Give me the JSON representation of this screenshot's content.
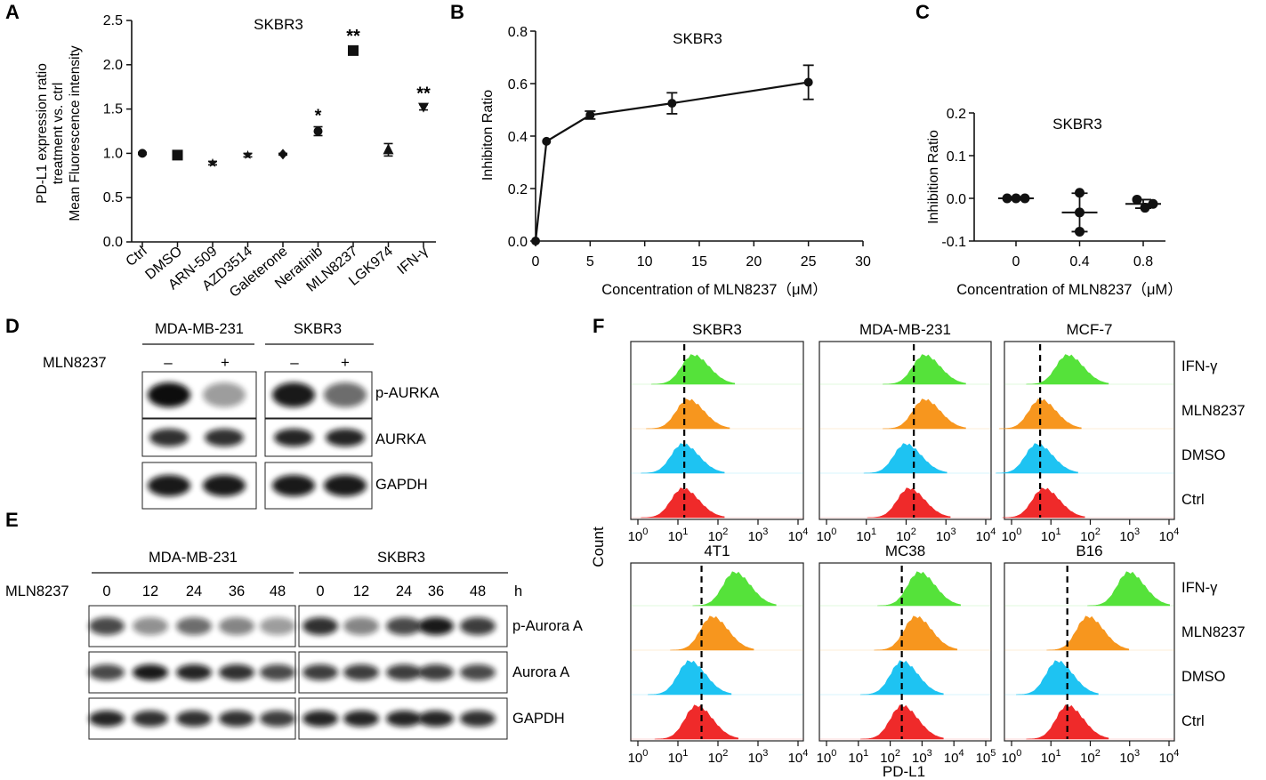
{
  "figure": {
    "panel_letters": {
      "A": "A",
      "B": "B",
      "C": "C",
      "D": "D",
      "E": "E",
      "F": "F"
    },
    "colors": {
      "ifn": "#55e23a",
      "mln": "#f7961e",
      "dmso": "#1ec3f2",
      "ctrl": "#ef2a2a",
      "ink": "#111111"
    }
  },
  "chart_data": [
    {
      "type": "scatter",
      "panel": "A",
      "title": "SKBR3",
      "ylabel_lines": [
        "PD-L1 expression ratio",
        "treatment vs. ctrl",
        "Mean Fluorescence intensity"
      ],
      "categories": [
        "Ctrl",
        "DMSO",
        "ARN-509",
        "AZD3514",
        "Galeterone",
        "Neratinib",
        "MLN8237",
        "LGK974",
        "IFN-γ"
      ],
      "values": [
        1.0,
        0.98,
        0.89,
        0.98,
        0.99,
        1.25,
        2.16,
        1.04,
        1.52
      ],
      "errors": [
        0.01,
        0.02,
        0.02,
        0.02,
        0.01,
        0.05,
        0.04,
        0.07,
        0.03
      ],
      "markers": [
        "circle",
        "square",
        "star",
        "star",
        "diamond",
        "circle",
        "square",
        "triangle",
        "triangle-down"
      ],
      "significance": [
        "",
        "",
        "",
        "",
        "",
        "*",
        "**",
        "",
        "**"
      ],
      "yticks": [
        "0.0",
        "0.5",
        "1.0",
        "1.5",
        "2.0",
        "2.5"
      ],
      "ylim": [
        0,
        2.5
      ]
    },
    {
      "type": "line",
      "panel": "B",
      "title": "SKBR3",
      "ylabel": "Inhibiton Ratio",
      "xlabel": "Concentration of MLN8237（μM）",
      "x": [
        0,
        1,
        5,
        12.5,
        25
      ],
      "values": [
        0.0,
        0.38,
        0.48,
        0.525,
        0.605
      ],
      "errors": [
        0.0,
        0.0,
        0.015,
        0.04,
        0.065
      ],
      "xticks": [
        "0",
        "5",
        "10",
        "15",
        "20",
        "25",
        "30"
      ],
      "yticks": [
        "0.0",
        "0.2",
        "0.4",
        "0.6",
        "0.8"
      ],
      "xlim": [
        0,
        30
      ],
      "ylim": [
        0,
        0.8
      ]
    },
    {
      "type": "scatter",
      "panel": "C",
      "title": "SKBR3",
      "ylabel": "Inhibition Ratio",
      "xlabel": "Concentration of MLN8237（μM）",
      "categories": [
        "0",
        "0.4",
        "0.8"
      ],
      "points": [
        [
          0.0,
          0.0,
          0.0
        ],
        [
          0.013,
          -0.033,
          -0.078
        ],
        [
          -0.003,
          -0.013,
          -0.022
        ]
      ],
      "means": [
        0.0,
        -0.033,
        -0.013
      ],
      "sd": [
        0.003,
        0.045,
        0.01
      ],
      "yticks": [
        "0.2",
        "0.1",
        "0.0",
        "-0.1"
      ],
      "ylim": [
        -0.1,
        0.2
      ]
    }
  ],
  "panelD": {
    "groups": [
      "MDA-MB-231",
      "SKBR3"
    ],
    "treatment_label": "MLN8237",
    "signs": [
      "–",
      "+",
      "–",
      "+"
    ],
    "bands": [
      "p-AURKA",
      "AURKA",
      "GAPDH"
    ]
  },
  "panelE": {
    "groups": [
      "MDA-MB-231",
      "SKBR3"
    ],
    "treatment_label": "MLN8237",
    "timepoints": [
      "0",
      "12",
      "24",
      "36",
      "48"
    ],
    "unit": "h",
    "bands": [
      "p-Aurora A",
      "Aurora A",
      "GAPDH"
    ]
  },
  "panelF": {
    "top_cells": [
      "SKBR3",
      "MDA-MB-231",
      "MCF-7"
    ],
    "bottom_cells": [
      "4T1",
      "MC38",
      "B16"
    ],
    "conditions": [
      "IFN-γ",
      "MLN8237",
      "DMSO",
      "Ctrl"
    ],
    "ylabel": "Count",
    "xlabel": "PD-L1",
    "tick_exponents": {
      "SKBR3": [
        "0",
        "1",
        "2",
        "3",
        "4"
      ],
      "MDA-MB-231": [
        "0",
        "1",
        "2",
        "3",
        "4"
      ],
      "MCF-7": [
        "0",
        "1",
        "2",
        "3",
        "4"
      ],
      "4T1": [
        "0",
        "1",
        "2",
        "3",
        "4"
      ],
      "MC38": [
        "0",
        "1",
        "2",
        "3",
        "4",
        "5"
      ],
      "B16": [
        "0",
        "1",
        "2",
        "3",
        "4"
      ]
    }
  }
}
